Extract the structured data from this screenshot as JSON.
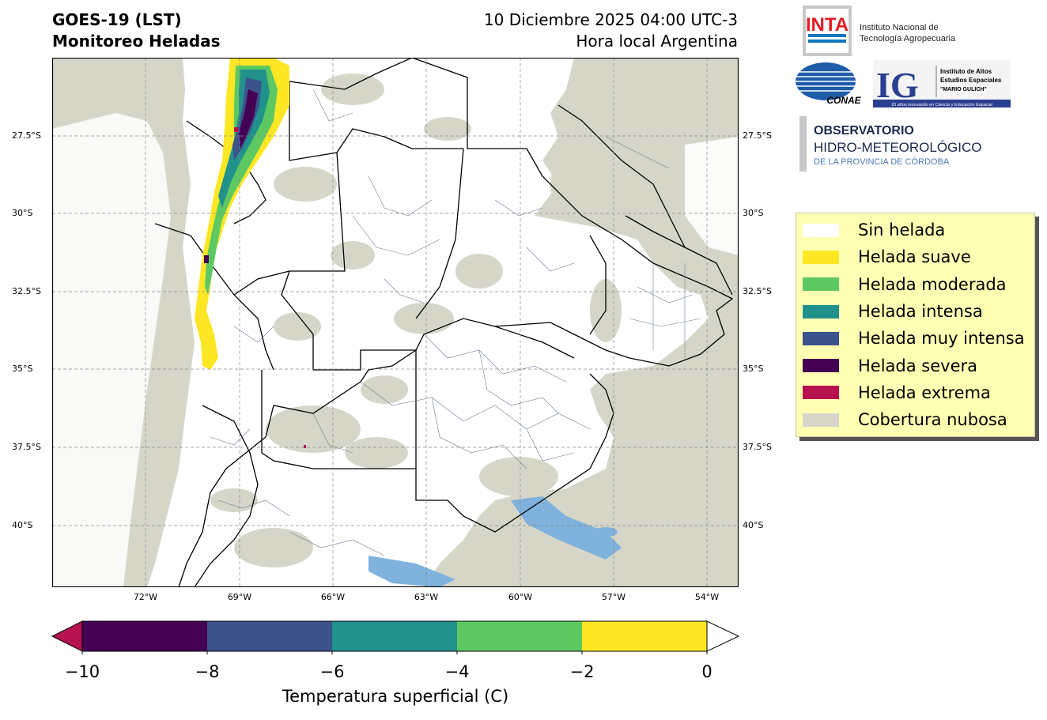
{
  "header": {
    "title_line1": "GOES-19 (LST)",
    "title_line2": "Monitoreo Heladas",
    "date_line": "10 Diciembre 2025 04:00 UTC-3",
    "time_zone_line": "Hora local Argentina"
  },
  "logos": {
    "inta_mark": "INTA",
    "inta_name_line1": "Instituto Nacional de",
    "inta_name_line2": "Tecnología Agropecuaria",
    "conae_mark": "CONAE",
    "ig_mark": "IG",
    "ig_line1": "Instituto de Altos",
    "ig_line2": "Estudios Espaciales",
    "ig_line3": "\"MARIO GULICH\"",
    "ig_tagline": "20 años innovando en Ciencia y Educación Espacial",
    "obs_line1": "OBSERVATORIO",
    "obs_line2": "HIDRO-METEOROLÓGICO",
    "obs_line3": "DE LA PROVINCIA DE CÓRDOBA"
  },
  "map": {
    "lat_ticks": [
      "27.5°S",
      "30°S",
      "32.5°S",
      "35°S",
      "37.5°S",
      "40°S"
    ],
    "lon_ticks": [
      "72°W",
      "69°W",
      "66°W",
      "63°W",
      "60°W",
      "57°W",
      "54°W"
    ]
  },
  "legend": {
    "items": [
      {
        "label": "Sin helada",
        "color": "#ffffff"
      },
      {
        "label": "Helada suave",
        "color": "#fde725"
      },
      {
        "label": "Helada moderada",
        "color": "#5ec962"
      },
      {
        "label": "Helada intensa",
        "color": "#21918c"
      },
      {
        "label": "Helada muy intensa",
        "color": "#3b528b"
      },
      {
        "label": "Helada severa",
        "color": "#440154"
      },
      {
        "label": "Helada extrema",
        "color": "#b5124f"
      },
      {
        "label": "Cobertura nubosa",
        "color": "#d6d6c8"
      }
    ]
  },
  "colorbar": {
    "ticks": [
      "−10",
      "−8",
      "−6",
      "−4",
      "−2",
      "0"
    ],
    "label": "Temperatura superficial (C)",
    "bins": [
      "#440154",
      "#3b528b",
      "#21918c",
      "#5ec962",
      "#fde725"
    ],
    "under_color": "#b5124f",
    "over_color": "#ffffff"
  },
  "colors": {
    "cloud": "#d6d6c8",
    "water": "#7fb2dc",
    "border_thin": "#6c7d92",
    "border_thick": "#000000"
  }
}
